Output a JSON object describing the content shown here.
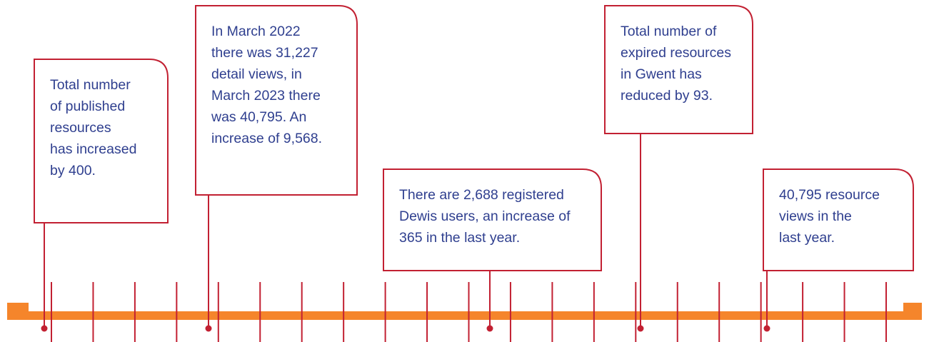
{
  "callouts": [
    {
      "lines": [
        "Total number",
        "of published",
        "resources",
        "has increased",
        "by 400."
      ]
    },
    {
      "lines": [
        "In March 2022",
        "there was 31,227",
        "detail views, in",
        "March 2023 there",
        "was 40,795. An",
        "increase of 9,568."
      ]
    },
    {
      "lines": [
        "There are 2,688 registered",
        "Dewis users, an increase of",
        "365 in the last year."
      ]
    },
    {
      "lines": [
        "Total number of",
        "expired resources",
        "in Gwent has",
        "reduced by 93."
      ]
    },
    {
      "lines": [
        "40,795 resource",
        "views in the",
        "last year."
      ]
    }
  ]
}
